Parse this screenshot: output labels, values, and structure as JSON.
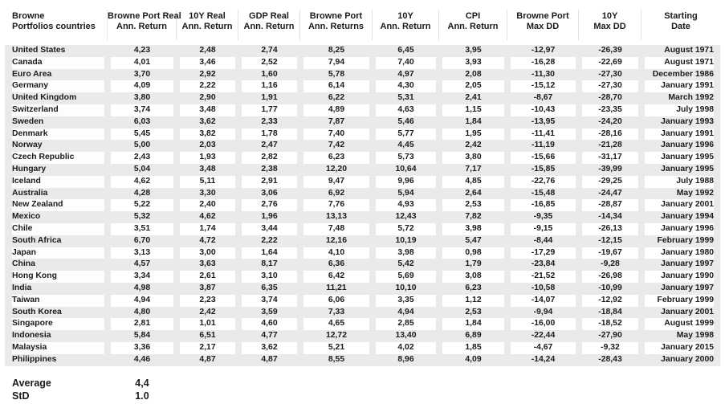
{
  "chart_data": {
    "type": "table",
    "columns": [
      {
        "line1": "Browne",
        "line2": "Portfolios countries"
      },
      {
        "line1": "Browne Port Real",
        "line2": "Ann. Return"
      },
      {
        "line1": "10Y Real",
        "line2": "Ann. Return"
      },
      {
        "line1": "GDP Real",
        "line2": "Ann. Return"
      },
      {
        "line1": "Browne Port",
        "line2": "Ann. Returns"
      },
      {
        "line1": "10Y",
        "line2": "Ann. Return"
      },
      {
        "line1": "CPI",
        "line2": "Ann. Return"
      },
      {
        "line1": "Browne Port",
        "line2": "Max DD"
      },
      {
        "line1": "10Y",
        "line2": "Max DD"
      },
      {
        "line1": "Starting",
        "line2": "Date"
      }
    ],
    "rows": [
      [
        "United States",
        "4,23",
        "2,48",
        "2,74",
        "8,25",
        "6,45",
        "3,95",
        "-12,97",
        "-26,39",
        "August 1971"
      ],
      [
        "Canada",
        "4,01",
        "3,46",
        "2,52",
        "7,94",
        "7,40",
        "3,93",
        "-16,28",
        "-22,69",
        "August 1971"
      ],
      [
        "Euro Area",
        "3,70",
        "2,92",
        "1,60",
        "5,78",
        "4,97",
        "2,08",
        "-11,30",
        "-27,30",
        "December 1986"
      ],
      [
        "Germany",
        "4,09",
        "2,22",
        "1,16",
        "6,14",
        "4,30",
        "2,05",
        "-15,12",
        "-27,30",
        "January 1991"
      ],
      [
        "United Kingdom",
        "3,80",
        "2,90",
        "1,91",
        "6,22",
        "5,31",
        "2,41",
        "-8,67",
        "-28,70",
        "March 1992"
      ],
      [
        "Switzerland",
        "3,74",
        "3,48",
        "1,77",
        "4,89",
        "4,63",
        "1,15",
        "-10,43",
        "-23,35",
        "July 1998"
      ],
      [
        "Sweden",
        "6,03",
        "3,62",
        "2,33",
        "7,87",
        "5,46",
        "1,84",
        "-13,95",
        "-24,20",
        "January 1993"
      ],
      [
        "Denmark",
        "5,45",
        "3,82",
        "1,78",
        "7,40",
        "5,77",
        "1,95",
        "-11,41",
        "-28,16",
        "January 1991"
      ],
      [
        "Norway",
        "5,00",
        "2,03",
        "2,47",
        "7,42",
        "4,45",
        "2,42",
        "-11,19",
        "-21,28",
        "January 1996"
      ],
      [
        "Czech Republic",
        "2,43",
        "1,93",
        "2,82",
        "6,23",
        "5,73",
        "3,80",
        "-15,66",
        "-31,17",
        "January 1995"
      ],
      [
        "Hungary",
        "5,04",
        "3,48",
        "2,38",
        "12,20",
        "10,64",
        "7,17",
        "-15,85",
        "-39,99",
        "January 1995"
      ],
      [
        "Iceland",
        "4,62",
        "5,11",
        "2,91",
        "9,47",
        "9,96",
        "4,85",
        "-22,76",
        "-29,25",
        "July 1988"
      ],
      [
        "Australia",
        "4,28",
        "3,30",
        "3,06",
        "6,92",
        "5,94",
        "2,64",
        "-15,48",
        "-24,47",
        "May 1992"
      ],
      [
        "New Zealand",
        "5,22",
        "2,40",
        "2,76",
        "7,76",
        "4,93",
        "2,53",
        "-16,85",
        "-28,87",
        "January 2001"
      ],
      [
        "Mexico",
        "5,32",
        "4,62",
        "1,96",
        "13,13",
        "12,43",
        "7,82",
        "-9,35",
        "-14,34",
        "January 1994"
      ],
      [
        "Chile",
        "3,51",
        "1,74",
        "3,44",
        "7,48",
        "5,72",
        "3,98",
        "-9,15",
        "-26,13",
        "January 1996"
      ],
      [
        "South Africa",
        "6,70",
        "4,72",
        "2,22",
        "12,16",
        "10,19",
        "5,47",
        "-8,44",
        "-12,15",
        "February 1999"
      ],
      [
        "Japan",
        "3,13",
        "3,00",
        "1,64",
        "4,10",
        "3,98",
        "0,98",
        "-17,29",
        "-19,67",
        "January 1980"
      ],
      [
        "China",
        "4,57",
        "3,63",
        "8,17",
        "6,36",
        "5,42",
        "1,79",
        "-23,84",
        "-9,28",
        "January 1997"
      ],
      [
        "Hong Kong",
        "3,34",
        "2,61",
        "3,10",
        "6,42",
        "5,69",
        "3,08",
        "-21,52",
        "-26,98",
        "January 1990"
      ],
      [
        "India",
        "4,98",
        "3,87",
        "6,35",
        "11,21",
        "10,10",
        "6,23",
        "-10,58",
        "-10,99",
        "January 1997"
      ],
      [
        "Taiwan",
        "4,94",
        "2,23",
        "3,74",
        "6,06",
        "3,35",
        "1,12",
        "-14,07",
        "-12,92",
        "February 1999"
      ],
      [
        "South Korea",
        "4,80",
        "2,42",
        "3,59",
        "7,33",
        "4,94",
        "2,53",
        "-9,94",
        "-18,84",
        "January 2001"
      ],
      [
        "Singapore",
        "2,81",
        "1,01",
        "4,60",
        "4,65",
        "2,85",
        "1,84",
        "-16,00",
        "-18,52",
        "August 1999"
      ],
      [
        "Indonesia",
        "5,84",
        "6,51",
        "4,77",
        "12,72",
        "13,40",
        "6,89",
        "-22,44",
        "-27,90",
        "May 1998"
      ],
      [
        "Malaysia",
        "3,36",
        "2,17",
        "3,62",
        "5,21",
        "4,02",
        "1,85",
        "-4,67",
        "-9,32",
        "January 2015"
      ],
      [
        "Philippines",
        "4,46",
        "4,87",
        "4,87",
        "8,55",
        "8,96",
        "4,09",
        "-14,24",
        "-28,43",
        "January 2000"
      ]
    ],
    "summary": {
      "average_label": "Average",
      "average_value": "4,4",
      "std_label": "StD",
      "std_value": "1.0"
    }
  }
}
